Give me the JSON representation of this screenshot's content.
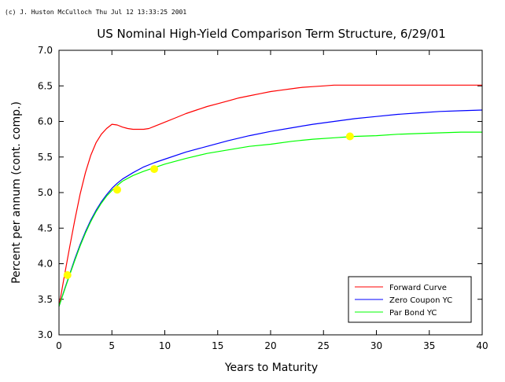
{
  "header": {
    "copyright": "(c) J. Huston McCulloch Thu Jul 12 13:33:25 2001"
  },
  "chart_data": {
    "type": "line",
    "title": "US Nominal High-Yield Comparison Term Structure, 6/29/01",
    "xlabel": "Years to Maturity",
    "ylabel": "Percent per annum (cont. comp.)",
    "xlim": [
      0,
      40
    ],
    "ylim": [
      3.0,
      7.0
    ],
    "x_ticks": [
      0,
      5,
      10,
      15,
      20,
      25,
      30,
      35,
      40
    ],
    "x_tick_labels": [
      "0",
      "5",
      "10",
      "15",
      "20",
      "25",
      "30",
      "35",
      "40"
    ],
    "y_ticks": [
      3.0,
      3.5,
      4.0,
      4.5,
      5.0,
      5.5,
      6.0,
      6.5,
      7.0
    ],
    "y_tick_labels": [
      "3.0",
      "3.5",
      "4.0",
      "4.5",
      "5.0",
      "5.5",
      "6.0",
      "6.5",
      "7.0"
    ],
    "grid": false,
    "legend_position": "bottom-right",
    "series": [
      {
        "name": "Forward Curve",
        "color": "#ff0000",
        "x": [
          0,
          0.5,
          1,
          1.5,
          2,
          2.5,
          3,
          3.5,
          4,
          4.5,
          5,
          5.5,
          6,
          6.5,
          7,
          7.5,
          8,
          8.5,
          9,
          10,
          11,
          12,
          13,
          14,
          15,
          16,
          17,
          18,
          19,
          20,
          21,
          22,
          23,
          24,
          25,
          26,
          28,
          30,
          32,
          34,
          36,
          38,
          40
        ],
        "y": [
          3.4,
          3.82,
          4.23,
          4.62,
          4.98,
          5.28,
          5.52,
          5.7,
          5.82,
          5.9,
          5.96,
          5.95,
          5.92,
          5.9,
          5.89,
          5.89,
          5.89,
          5.9,
          5.93,
          5.99,
          6.05,
          6.11,
          6.16,
          6.21,
          6.25,
          6.29,
          6.33,
          6.36,
          6.39,
          6.42,
          6.44,
          6.46,
          6.48,
          6.49,
          6.5,
          6.51,
          6.51,
          6.51,
          6.51,
          6.51,
          6.51,
          6.51,
          6.51
        ]
      },
      {
        "name": "Zero Coupon YC",
        "color": "#0000ff",
        "x": [
          0,
          0.5,
          1,
          1.5,
          2,
          2.5,
          3,
          3.5,
          4,
          4.5,
          5,
          5.5,
          6,
          7,
          8,
          9,
          10,
          12,
          14,
          16,
          18,
          20,
          22,
          24,
          26,
          28,
          30,
          32,
          34,
          36,
          38,
          40
        ],
        "y": [
          3.4,
          3.63,
          3.85,
          4.07,
          4.27,
          4.45,
          4.61,
          4.75,
          4.87,
          4.97,
          5.06,
          5.13,
          5.19,
          5.28,
          5.36,
          5.42,
          5.47,
          5.57,
          5.65,
          5.73,
          5.8,
          5.86,
          5.91,
          5.96,
          6.0,
          6.04,
          6.07,
          6.1,
          6.12,
          6.14,
          6.15,
          6.16
        ]
      },
      {
        "name": "Par Bond YC",
        "color": "#00ff00",
        "x": [
          0,
          0.5,
          1,
          1.5,
          2,
          2.5,
          3,
          3.5,
          4,
          4.5,
          5,
          5.5,
          6,
          7,
          8,
          9,
          10,
          12,
          14,
          16,
          18,
          20,
          22,
          24,
          26,
          28,
          30,
          32,
          34,
          36,
          38,
          40
        ],
        "y": [
          3.4,
          3.62,
          3.84,
          4.05,
          4.25,
          4.43,
          4.59,
          4.73,
          4.85,
          4.95,
          5.03,
          5.1,
          5.16,
          5.24,
          5.3,
          5.35,
          5.4,
          5.48,
          5.55,
          5.6,
          5.65,
          5.68,
          5.72,
          5.75,
          5.77,
          5.79,
          5.8,
          5.82,
          5.83,
          5.84,
          5.85,
          5.85
        ]
      }
    ],
    "observed_points": {
      "color": "#ffff00",
      "x": [
        0.8,
        5.5,
        9.0,
        27.5
      ],
      "y": [
        3.84,
        5.04,
        5.33,
        5.79
      ]
    }
  }
}
